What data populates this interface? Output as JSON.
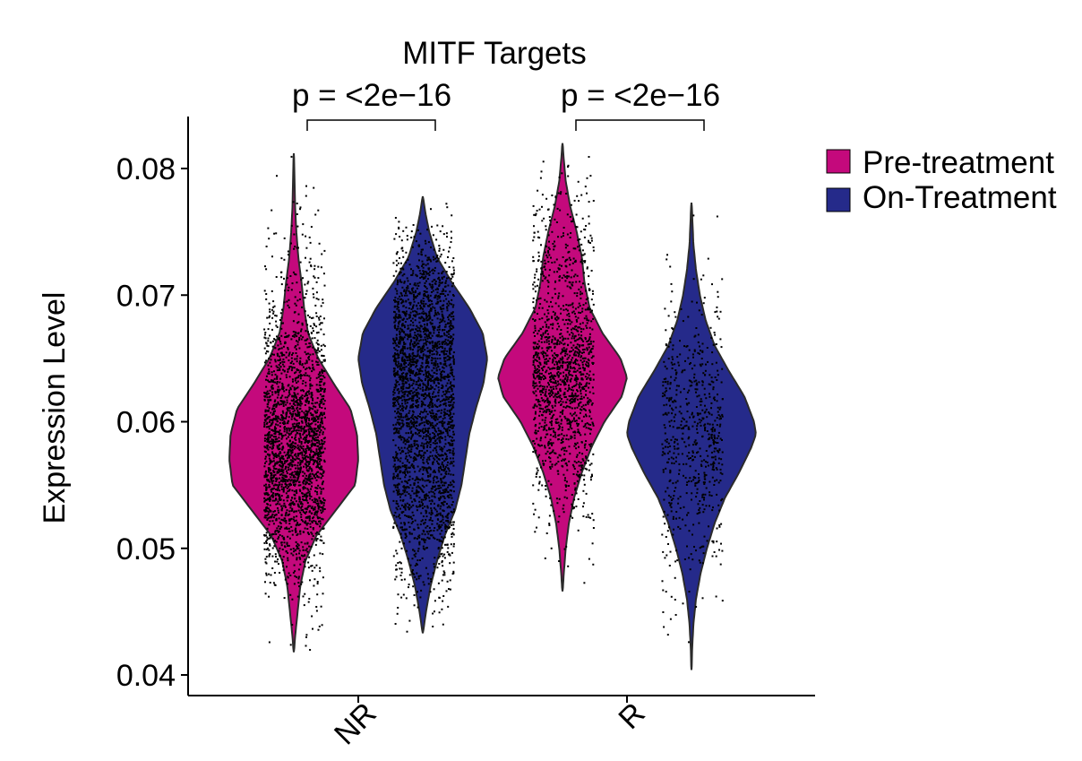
{
  "chart_data": {
    "type": "violin",
    "title": "MITF Targets",
    "xlabel": "",
    "ylabel": "Expression Level",
    "ylim": [
      0.04,
      0.084
    ],
    "yticks": [
      0.04,
      0.05,
      0.06,
      0.07,
      0.08
    ],
    "ytick_labels": [
      "0.04",
      "0.05",
      "0.06",
      "0.07",
      "0.08"
    ],
    "categories": [
      "NR",
      "R"
    ],
    "series": [
      {
        "name": "Pre-treatment",
        "color": "#C4097C",
        "violins": [
          {
            "category": "NR",
            "min": 0.0418,
            "max": 0.0812,
            "median": 0.0585,
            "n_points": 2400,
            "density": [
              [
                0.0418,
                0.003
              ],
              [
                0.043,
                0.02
              ],
              [
                0.045,
                0.06
              ],
              [
                0.047,
                0.1
              ],
              [
                0.049,
                0.18
              ],
              [
                0.051,
                0.35
              ],
              [
                0.053,
                0.65
              ],
              [
                0.055,
                0.95
              ],
              [
                0.057,
                1.0
              ],
              [
                0.059,
                0.98
              ],
              [
                0.061,
                0.88
              ],
              [
                0.063,
                0.62
              ],
              [
                0.065,
                0.38
              ],
              [
                0.067,
                0.22
              ],
              [
                0.069,
                0.16
              ],
              [
                0.071,
                0.12
              ],
              [
                0.073,
                0.07
              ],
              [
                0.075,
                0.04
              ],
              [
                0.077,
                0.02
              ],
              [
                0.079,
                0.012
              ],
              [
                0.0812,
                0.003
              ]
            ]
          },
          {
            "category": "R",
            "min": 0.0466,
            "max": 0.082,
            "median": 0.0635,
            "n_points": 1500,
            "density": [
              [
                0.0466,
                0.003
              ],
              [
                0.048,
                0.02
              ],
              [
                0.05,
                0.05
              ],
              [
                0.052,
                0.1
              ],
              [
                0.054,
                0.18
              ],
              [
                0.056,
                0.3
              ],
              [
                0.058,
                0.45
              ],
              [
                0.06,
                0.65
              ],
              [
                0.062,
                0.92
              ],
              [
                0.0635,
                1.0
              ],
              [
                0.065,
                0.9
              ],
              [
                0.067,
                0.62
              ],
              [
                0.069,
                0.42
              ],
              [
                0.071,
                0.34
              ],
              [
                0.073,
                0.3
              ],
              [
                0.075,
                0.22
              ],
              [
                0.077,
                0.12
              ],
              [
                0.079,
                0.05
              ],
              [
                0.081,
                0.015
              ],
              [
                0.082,
                0.003
              ]
            ]
          }
        ]
      },
      {
        "name": "On-Treatment",
        "color": "#252A8A",
        "violins": [
          {
            "category": "NR",
            "min": 0.0433,
            "max": 0.0778,
            "median": 0.064,
            "n_points": 2800,
            "density": [
              [
                0.0433,
                0.003
              ],
              [
                0.045,
                0.05
              ],
              [
                0.047,
                0.12
              ],
              [
                0.049,
                0.22
              ],
              [
                0.051,
                0.34
              ],
              [
                0.053,
                0.5
              ],
              [
                0.055,
                0.6
              ],
              [
                0.057,
                0.66
              ],
              [
                0.059,
                0.72
              ],
              [
                0.061,
                0.82
              ],
              [
                0.063,
                0.94
              ],
              [
                0.065,
                1.0
              ],
              [
                0.067,
                0.93
              ],
              [
                0.069,
                0.72
              ],
              [
                0.071,
                0.45
              ],
              [
                0.073,
                0.22
              ],
              [
                0.075,
                0.1
              ],
              [
                0.0765,
                0.04
              ],
              [
                0.0778,
                0.003
              ]
            ]
          },
          {
            "category": "R",
            "min": 0.0404,
            "max": 0.0773,
            "median": 0.059,
            "n_points": 650,
            "density": [
              [
                0.0404,
                0.003
              ],
              [
                0.042,
                0.01
              ],
              [
                0.044,
                0.03
              ],
              [
                0.046,
                0.07
              ],
              [
                0.048,
                0.14
              ],
              [
                0.05,
                0.24
              ],
              [
                0.052,
                0.36
              ],
              [
                0.054,
                0.52
              ],
              [
                0.056,
                0.74
              ],
              [
                0.058,
                0.93
              ],
              [
                0.059,
                1.0
              ],
              [
                0.06,
                0.97
              ],
              [
                0.062,
                0.82
              ],
              [
                0.064,
                0.58
              ],
              [
                0.066,
                0.36
              ],
              [
                0.068,
                0.22
              ],
              [
                0.07,
                0.13
              ],
              [
                0.072,
                0.07
              ],
              [
                0.074,
                0.03
              ],
              [
                0.0773,
                0.003
              ]
            ]
          }
        ]
      }
    ],
    "annotations": [
      {
        "category": "NR",
        "text": "p = <2e−16"
      },
      {
        "category": "R",
        "text": "p = <2e−16"
      }
    ],
    "legend": {
      "position": "top-right",
      "entries": [
        "Pre-treatment",
        "On-Treatment"
      ]
    },
    "grid": false
  }
}
